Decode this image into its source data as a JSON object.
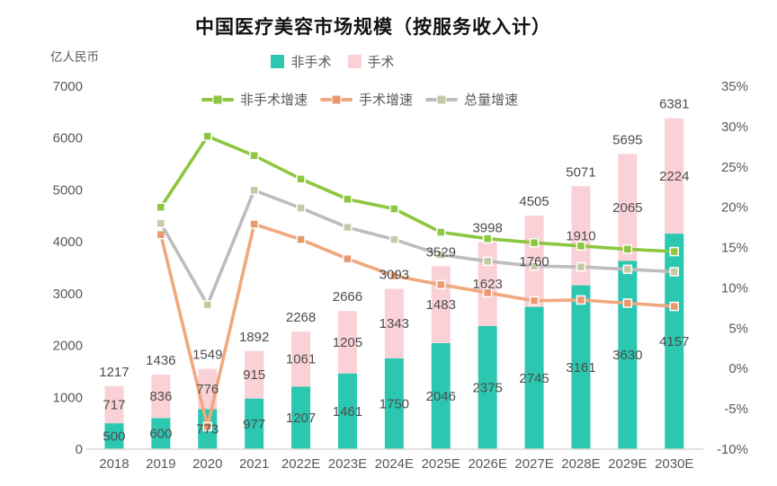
{
  "chart_data": {
    "type": "bar",
    "subtype": "stacked-column-with-growth-lines",
    "title": "中国医疗美容市场规模（按服务收入计）",
    "unit_label": "亿人民币",
    "grid": false,
    "legend_position": "top",
    "categories": [
      "2018",
      "2019",
      "2020",
      "2021",
      "2022E",
      "2023E",
      "2024E",
      "2025E",
      "2026E",
      "2027E",
      "2028E",
      "2029E",
      "2030E"
    ],
    "bar_series": [
      {
        "name": "非手术",
        "color": "#2bc7b0",
        "values": [
          500,
          600,
          773,
          977,
          1207,
          1461,
          1750,
          2046,
          2375,
          2745,
          3161,
          3630,
          4157
        ]
      },
      {
        "name": "手术",
        "color": "#fad1d6",
        "values": [
          717,
          836,
          776,
          915,
          1061,
          1205,
          1343,
          1483,
          1623,
          1760,
          1910,
          2065,
          2224
        ]
      }
    ],
    "totals": [
      1217,
      1436,
      1549,
      1892,
      2268,
      2666,
      3093,
      3529,
      3998,
      4505,
      5071,
      5695,
      6381
    ],
    "line_series": [
      {
        "name": "非手术增速",
        "color": "#8dc63f",
        "marker_color": "#8dc63f",
        "values_pct": [
          null,
          20.0,
          28.8,
          26.4,
          23.5,
          21.0,
          19.8,
          16.9,
          16.1,
          15.6,
          15.2,
          14.8,
          14.5
        ]
      },
      {
        "name": "手术增速",
        "color": "#f0a87e",
        "marker_color": "#e9996f",
        "values_pct": [
          null,
          16.6,
          -7.2,
          17.9,
          16.0,
          13.6,
          11.5,
          10.4,
          9.4,
          8.4,
          8.5,
          8.1,
          7.7
        ]
      },
      {
        "name": "总量增速",
        "color": "#bdbdbd",
        "marker_color": "#c6c9a4",
        "values_pct": [
          null,
          18.0,
          7.9,
          22.1,
          19.9,
          17.5,
          16.0,
          14.1,
          13.3,
          12.7,
          12.6,
          12.3,
          12.0
        ]
      }
    ],
    "y_left": {
      "min": 0,
      "max": 7000,
      "step": 1000,
      "tick_labels": [
        "0",
        "1000",
        "2000",
        "3000",
        "4000",
        "5000",
        "6000",
        "7000"
      ]
    },
    "y_right": {
      "min": -10,
      "max": 35,
      "step": 5,
      "tick_labels": [
        "-10%",
        "-5%",
        "0%",
        "5%",
        "10%",
        "15%",
        "20%",
        "25%",
        "30%",
        "35%"
      ]
    },
    "label_color": "#4d4d4d",
    "axis_color": "#595959",
    "baseline_color": "#d9d9d9"
  }
}
